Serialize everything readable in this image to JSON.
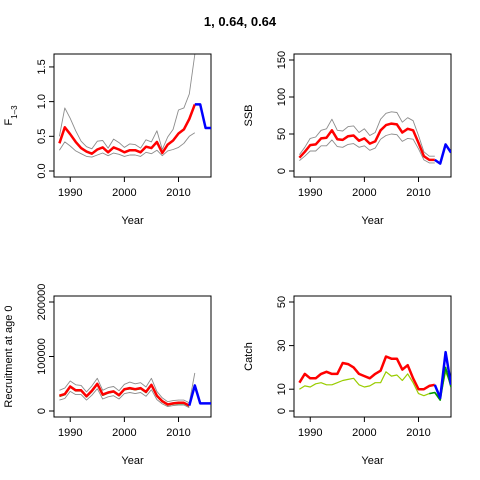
{
  "figure_title": "1, 0.64, 0.64",
  "colors": {
    "red": "#ff0000",
    "blue": "#0000ff",
    "green": "#009900",
    "yellowgreen": "#99cc00",
    "grey": "#8c8c8c",
    "black": "#000000"
  },
  "chart_data": [
    {
      "type": "line",
      "ylabel": "F",
      "ylabel_sub": "1–3",
      "xlabel": "Year",
      "xlim": [
        1987,
        2016
      ],
      "ylim": [
        0,
        1.6
      ],
      "x_ticks": [
        1990,
        2000,
        2010
      ],
      "y_ticks": [
        0.0,
        0.5,
        1.0,
        1.5
      ],
      "y_tick_labels": [
        "0.0",
        "0.5",
        "1.0",
        "1.5"
      ],
      "series": [
        {
          "role": "estimate",
          "color": "red",
          "x": [
            1988,
            1989,
            1990,
            1991,
            1992,
            1993,
            1994,
            1995,
            1996,
            1997,
            1998,
            1999,
            2000,
            2001,
            2002,
            2003,
            2004,
            2005,
            2006,
            2007,
            2008,
            2009,
            2010,
            2011,
            2012,
            2013
          ],
          "y": [
            0.4,
            0.63,
            0.53,
            0.42,
            0.33,
            0.28,
            0.25,
            0.31,
            0.34,
            0.27,
            0.34,
            0.31,
            0.27,
            0.3,
            0.3,
            0.27,
            0.35,
            0.33,
            0.42,
            0.26,
            0.38,
            0.44,
            0.54,
            0.6,
            0.75,
            0.96
          ]
        },
        {
          "role": "projection",
          "color": "blue",
          "x": [
            2013,
            2014,
            2015,
            2016
          ],
          "y": [
            0.96,
            0.96,
            0.62,
            0.62
          ]
        },
        {
          "role": "upper-bound",
          "color": "grey",
          "x": [
            1988,
            1989,
            1990,
            1991,
            1992,
            1993,
            1994,
            1995,
            1996,
            1997,
            1998,
            1999,
            2000,
            2001,
            2002,
            2003,
            2004,
            2005,
            2006,
            2007,
            2008,
            2009,
            2010,
            2011,
            2012,
            2013
          ],
          "y": [
            0.5,
            0.91,
            0.76,
            0.58,
            0.43,
            0.35,
            0.32,
            0.43,
            0.44,
            0.33,
            0.46,
            0.41,
            0.34,
            0.39,
            0.38,
            0.33,
            0.45,
            0.42,
            0.58,
            0.31,
            0.49,
            0.6,
            0.88,
            0.91,
            1.11,
            1.68
          ]
        },
        {
          "role": "lower-bound",
          "color": "grey",
          "x": [
            1988,
            1989,
            1990,
            1991,
            1992,
            1993,
            1994,
            1995,
            1996,
            1997,
            1998,
            1999,
            2000,
            2001,
            2002,
            2003,
            2004,
            2005,
            2006,
            2007,
            2008,
            2009,
            2010,
            2011,
            2012,
            2013
          ],
          "y": [
            0.3,
            0.42,
            0.36,
            0.29,
            0.25,
            0.21,
            0.2,
            0.23,
            0.26,
            0.22,
            0.26,
            0.24,
            0.21,
            0.23,
            0.23,
            0.21,
            0.27,
            0.25,
            0.3,
            0.22,
            0.29,
            0.31,
            0.34,
            0.4,
            0.5,
            0.55
          ]
        }
      ]
    },
    {
      "type": "line",
      "ylabel": "SSB",
      "xlabel": "Year",
      "xlim": [
        1987,
        2016
      ],
      "ylim": [
        0,
        150
      ],
      "x_ticks": [
        1990,
        2000,
        2010
      ],
      "y_ticks": [
        0,
        50,
        100,
        150
      ],
      "y_tick_labels": [
        "0",
        "50",
        "100",
        "150"
      ],
      "series": [
        {
          "role": "estimate",
          "color": "red",
          "x": [
            1988,
            1989,
            1990,
            1991,
            1992,
            1993,
            1994,
            1995,
            1996,
            1997,
            1998,
            1999,
            2000,
            2001,
            2002,
            2003,
            2004,
            2005,
            2006,
            2007,
            2008,
            2009,
            2010,
            2011,
            2012,
            2013
          ],
          "y": [
            18,
            26,
            35,
            36,
            44,
            45,
            55,
            43,
            42,
            47,
            48,
            41,
            44,
            37,
            40,
            55,
            62,
            64,
            63,
            52,
            57,
            55,
            38,
            20,
            15,
            15
          ]
        },
        {
          "role": "projection",
          "color": "blue",
          "x": [
            2013,
            2014,
            2015,
            2016
          ],
          "y": [
            15,
            10,
            36,
            25
          ]
        },
        {
          "role": "upper-bound",
          "color": "grey",
          "x": [
            1988,
            1989,
            1990,
            1991,
            1992,
            1993,
            1994,
            1995,
            1996,
            1997,
            1998,
            1999,
            2000,
            2001,
            2002,
            2003,
            2004,
            2005,
            2006,
            2007,
            2008,
            2009,
            2010,
            2011,
            2012,
            2013
          ],
          "y": [
            22,
            32,
            44,
            46,
            55,
            57,
            70,
            55,
            54,
            60,
            61,
            52,
            57,
            48,
            52,
            70,
            78,
            80,
            79,
            66,
            72,
            68,
            48,
            26,
            20,
            20
          ]
        },
        {
          "role": "lower-bound",
          "color": "grey",
          "x": [
            1988,
            1989,
            1990,
            1991,
            1992,
            1993,
            1994,
            1995,
            1996,
            1997,
            1998,
            1999,
            2000,
            2001,
            2002,
            2003,
            2004,
            2005,
            2006,
            2007,
            2008,
            2009,
            2010,
            2011,
            2012,
            2013
          ],
          "y": [
            14,
            20,
            27,
            27,
            34,
            34,
            42,
            33,
            32,
            36,
            37,
            32,
            34,
            28,
            31,
            43,
            48,
            50,
            49,
            40,
            44,
            43,
            30,
            15,
            11,
            11
          ]
        }
      ]
    },
    {
      "type": "line",
      "ylabel": "Recruitment at age 0",
      "xlabel": "Year",
      "xlim": [
        1987,
        2016
      ],
      "ylim": [
        0,
        200000
      ],
      "x_ticks": [
        1990,
        2000,
        2010
      ],
      "y_ticks": [
        0,
        100000,
        200000
      ],
      "y_tick_labels": [
        "0",
        "100000",
        "200000"
      ],
      "series": [
        {
          "role": "estimate",
          "color": "red",
          "x": [
            1988,
            1989,
            1990,
            1991,
            1992,
            1993,
            1994,
            1995,
            1996,
            1997,
            1998,
            1999,
            2000,
            2001,
            2002,
            2003,
            2004,
            2005,
            2006,
            2007,
            2008,
            2009,
            2010,
            2011,
            2012
          ],
          "y": [
            28000,
            31000,
            45000,
            38000,
            38000,
            27000,
            37000,
            50000,
            30000,
            34000,
            36000,
            29000,
            40000,
            42000,
            40000,
            42000,
            35000,
            48000,
            28000,
            18000,
            12000,
            14000,
            15000,
            15000,
            10000
          ]
        },
        {
          "role": "projection",
          "color": "blue",
          "x": [
            2012,
            2013,
            2014,
            2015,
            2016
          ],
          "y": [
            10000,
            47000,
            14000,
            14000,
            14000
          ]
        },
        {
          "role": "upper-bound",
          "color": "grey",
          "x": [
            1988,
            1989,
            1990,
            1991,
            1992,
            1993,
            1994,
            1995,
            1996,
            1997,
            1998,
            1999,
            2000,
            2001,
            2002,
            2003,
            2004,
            2005,
            2006,
            2007,
            2008,
            2009,
            2010,
            2011,
            2012,
            2013
          ],
          "y": [
            38000,
            42000,
            55000,
            48000,
            47000,
            35000,
            46000,
            60000,
            38000,
            43000,
            45000,
            37000,
            49000,
            53000,
            50000,
            52000,
            44000,
            60000,
            36000,
            24000,
            17000,
            19000,
            20000,
            20000,
            15000,
            70000
          ]
        },
        {
          "role": "lower-bound",
          "color": "grey",
          "x": [
            1988,
            1989,
            1990,
            1991,
            1992,
            1993,
            1994,
            1995,
            1996,
            1997,
            1998,
            1999,
            2000,
            2001,
            2002,
            2003,
            2004,
            2005,
            2006,
            2007,
            2008,
            2009,
            2010,
            2011,
            2012
          ],
          "y": [
            20000,
            23000,
            36000,
            30000,
            30000,
            20000,
            29000,
            41000,
            22000,
            26000,
            28000,
            22000,
            32000,
            34000,
            32000,
            34000,
            27000,
            39000,
            21000,
            13000,
            8000,
            10000,
            11000,
            11000,
            6000
          ]
        },
        {
          "role": "observed",
          "color": "green",
          "x": [
            1988,
            1989,
            1990,
            1991,
            1992,
            1993,
            1994,
            1995,
            1996,
            1997,
            1998,
            1999,
            2000,
            2001,
            2002,
            2003,
            2004,
            2005,
            2006,
            2007,
            2008,
            2009,
            2010,
            2011,
            2012
          ],
          "y": [
            27000,
            30000,
            44000,
            37000,
            37000,
            26000,
            36000,
            49000,
            29000,
            33000,
            35000,
            28000,
            39000,
            41000,
            39000,
            41000,
            34000,
            47000,
            27000,
            17000,
            11000,
            13000,
            14000,
            14000,
            9000
          ]
        }
      ]
    },
    {
      "type": "line",
      "ylabel": "Catch",
      "xlabel": "Year",
      "xlim": [
        1987,
        2016
      ],
      "ylim": [
        0,
        50
      ],
      "x_ticks": [
        1990,
        2000,
        2010
      ],
      "y_ticks": [
        0,
        10,
        30,
        50
      ],
      "y_tick_labels": [
        "0",
        "10",
        "30",
        "50"
      ],
      "series": [
        {
          "role": "observed",
          "color": "yellowgreen",
          "x": [
            1988,
            1989,
            1990,
            1991,
            1992,
            1993,
            1994,
            1995,
            1996,
            1997,
            1998,
            1999,
            2000,
            2001,
            2002,
            2003,
            2004,
            2005,
            2006,
            2007,
            2008,
            2009,
            2010,
            2011,
            2012,
            2013,
            2014,
            2015,
            2016
          ],
          "y": [
            10,
            11.5,
            11,
            12.5,
            13,
            12,
            12,
            13,
            14,
            14.5,
            15,
            12,
            11,
            11.5,
            13,
            13,
            18,
            16,
            16.5,
            14,
            17,
            13,
            8,
            7,
            8,
            8.5,
            6,
            18,
            12
          ]
        },
        {
          "role": "estimate",
          "color": "red",
          "x": [
            1988,
            1989,
            1990,
            1991,
            1992,
            1993,
            1994,
            1995,
            1996,
            1997,
            1998,
            1999,
            2000,
            2001,
            2002,
            2003,
            2004,
            2005,
            2006,
            2007,
            2008,
            2009,
            2010,
            2011,
            2012,
            2013
          ],
          "y": [
            13,
            17,
            15,
            15,
            17,
            18,
            17,
            17,
            22,
            21.5,
            20,
            17,
            16,
            15,
            17,
            18.5,
            25,
            24,
            24,
            19,
            21,
            15,
            10,
            10,
            11.5,
            12
          ]
        },
        {
          "role": "projection",
          "color": "blue",
          "x": [
            2013,
            2014,
            2015,
            2016
          ],
          "y": [
            12,
            6,
            27,
            12
          ]
        },
        {
          "role": "fit",
          "color": "green",
          "x": [
            2012,
            2013,
            2014,
            2015,
            2016
          ],
          "y": [
            8,
            8.5,
            5,
            20,
            11
          ]
        }
      ]
    }
  ]
}
